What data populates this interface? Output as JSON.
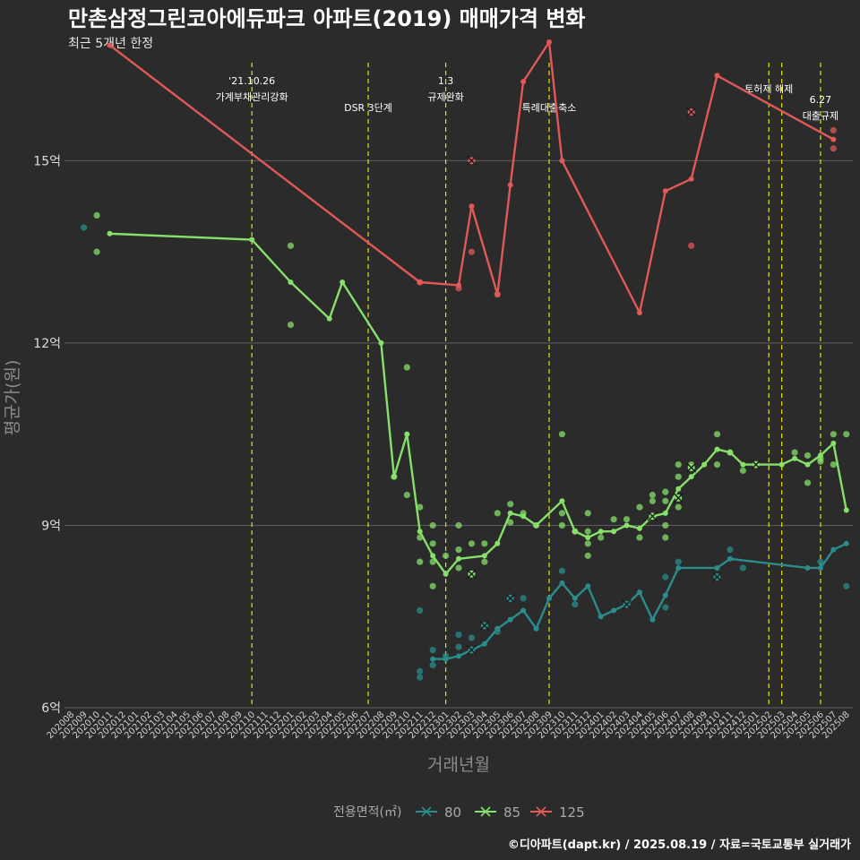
{
  "title": "만촌삼정그린코아에듀파크 아파트(2019) 매매가격 변화",
  "subtitle": "최근 5개년 한정",
  "caption": "©디아파트(dapt.kr) / 2025.08.19 / 자료=국토교통부 실거래가",
  "colors": {
    "background": "#2b2b2b",
    "gridline": "#5e5e5e",
    "event_line": "#e5e500",
    "series_80": "#2a8c8c",
    "series_85": "#86e06a",
    "series_125": "#e05858"
  },
  "chart_data": {
    "type": "line",
    "xlabel": "거래년월",
    "ylabel": "평균가(원)",
    "ylim": [
      6,
      16.7
    ],
    "yticks": [
      6,
      9,
      12,
      15
    ],
    "ytick_labels": [
      "6억",
      "9억",
      "12억",
      "15억"
    ],
    "grid": true,
    "x_categories": [
      "202008",
      "202009",
      "202010",
      "202011",
      "202012",
      "202101",
      "202102",
      "202103",
      "202104",
      "202105",
      "202106",
      "202107",
      "202108",
      "202109",
      "202110",
      "202111",
      "202112",
      "202201",
      "202202",
      "202203",
      "202204",
      "202205",
      "202206",
      "202207",
      "202208",
      "202209",
      "202210",
      "202211",
      "202212",
      "202301",
      "202302",
      "202303",
      "202304",
      "202305",
      "202306",
      "202307",
      "202308",
      "202309",
      "202310",
      "202311",
      "202312",
      "202401",
      "202402",
      "202403",
      "202404",
      "202405",
      "202406",
      "202407",
      "202408",
      "202409",
      "202410",
      "202411",
      "202412",
      "202501",
      "202502",
      "202503",
      "202504",
      "202505",
      "202506",
      "202507",
      "202508"
    ],
    "legend": {
      "title": "전용면적(㎡)",
      "position": "bottom",
      "entries": [
        "80",
        "85",
        "125"
      ]
    },
    "events": [
      {
        "x": "202110",
        "lines": [
          "'21.10.26",
          "가계부채관리강화"
        ]
      },
      {
        "x": "202207",
        "lines": [
          "DSR 3단계"
        ]
      },
      {
        "x": "202301",
        "lines": [
          "1.3",
          "규제완화"
        ]
      },
      {
        "x": "202309",
        "lines": [
          "특례대출축소"
        ]
      },
      {
        "x": "202502",
        "lines": [
          "토허제 해제"
        ]
      },
      {
        "x": "202503",
        "lines": []
      },
      {
        "x": "202506",
        "lines": [
          "6.27",
          "대출규제"
        ]
      }
    ],
    "series": [
      {
        "name": "80",
        "line": [
          [
            "202212",
            6.8
          ],
          [
            "202301",
            6.8
          ],
          [
            "202302",
            6.85
          ],
          [
            "202303",
            6.95
          ],
          [
            "202304",
            7.05
          ],
          [
            "202305",
            7.3
          ],
          [
            "202306",
            7.45
          ],
          [
            "202307",
            7.6
          ],
          [
            "202308",
            7.3
          ],
          [
            "202309",
            7.8
          ],
          [
            "202310",
            8.05
          ],
          [
            "202311",
            7.8
          ],
          [
            "202312",
            8.0
          ],
          [
            "202401",
            7.5
          ],
          [
            "202402",
            7.6
          ],
          [
            "202403",
            7.7
          ],
          [
            "202404",
            7.9
          ],
          [
            "202405",
            7.45
          ],
          [
            "202406",
            7.85
          ],
          [
            "202407",
            8.3
          ],
          [
            "202410",
            8.3
          ],
          [
            "202411",
            8.45
          ],
          [
            "202505",
            8.3
          ],
          [
            "202506",
            8.3
          ],
          [
            "202507",
            8.6
          ],
          [
            "202508",
            8.7
          ]
        ],
        "points": [
          [
            "202009",
            13.9
          ],
          [
            "202211",
            7.6
          ],
          [
            "202211",
            6.5
          ],
          [
            "202211",
            6.6
          ],
          [
            "202212",
            6.95
          ],
          [
            "202212",
            6.7
          ],
          [
            "202301",
            6.85
          ],
          [
            "202302",
            7.2
          ],
          [
            "202302",
            7.0
          ],
          [
            "202303",
            7.15
          ],
          [
            "202305",
            7.25
          ],
          [
            "202307",
            7.8
          ],
          [
            "202310",
            8.25
          ],
          [
            "202311",
            7.7
          ],
          [
            "202406",
            8.15
          ],
          [
            "202406",
            7.65
          ],
          [
            "202407",
            8.4
          ],
          [
            "202411",
            8.6
          ],
          [
            "202412",
            8.3
          ],
          [
            "202506",
            8.4
          ],
          [
            "202508",
            8.0
          ]
        ],
        "cancelled": [
          [
            "202303",
            6.95
          ],
          [
            "202304",
            7.35
          ],
          [
            "202306",
            7.8
          ],
          [
            "202403",
            7.7
          ],
          [
            "202410",
            8.15
          ]
        ]
      },
      {
        "name": "85",
        "line": [
          [
            "202011",
            13.8
          ],
          [
            "202110",
            13.7
          ],
          [
            "202201",
            13.0
          ],
          [
            "202204",
            12.4
          ],
          [
            "202205",
            13.0
          ],
          [
            "202208",
            12.0
          ],
          [
            "202209",
            9.8
          ],
          [
            "202210",
            10.5
          ],
          [
            "202211",
            8.9
          ],
          [
            "202212",
            8.5
          ],
          [
            "202301",
            8.2
          ],
          [
            "202302",
            8.45
          ],
          [
            "202304",
            8.5
          ],
          [
            "202305",
            8.7
          ],
          [
            "202306",
            9.2
          ],
          [
            "202307",
            9.15
          ],
          [
            "202308",
            9.0
          ],
          [
            "202310",
            9.4
          ],
          [
            "202311",
            8.9
          ],
          [
            "202312",
            8.8
          ],
          [
            "202401",
            8.9
          ],
          [
            "202402",
            8.9
          ],
          [
            "202403",
            9.0
          ],
          [
            "202404",
            8.95
          ],
          [
            "202405",
            9.15
          ],
          [
            "202406",
            9.2
          ],
          [
            "202407",
            9.6
          ],
          [
            "202408",
            9.8
          ],
          [
            "202409",
            10.0
          ],
          [
            "202410",
            10.25
          ],
          [
            "202411",
            10.2
          ],
          [
            "202412",
            10.0
          ],
          [
            "202501",
            10.0
          ],
          [
            "202503",
            10.0
          ],
          [
            "202504",
            10.1
          ],
          [
            "202505",
            10.0
          ],
          [
            "202506",
            10.15
          ],
          [
            "202507",
            10.35
          ],
          [
            "202508",
            9.25
          ]
        ],
        "points": [
          [
            "202010",
            14.1
          ],
          [
            "202010",
            13.5
          ],
          [
            "202201",
            13.6
          ],
          [
            "202201",
            12.3
          ],
          [
            "202209",
            9.8
          ],
          [
            "202210",
            11.6
          ],
          [
            "202210",
            9.5
          ],
          [
            "202211",
            9.3
          ],
          [
            "202211",
            8.8
          ],
          [
            "202211",
            8.4
          ],
          [
            "202212",
            9.0
          ],
          [
            "202212",
            8.7
          ],
          [
            "202212",
            8.4
          ],
          [
            "202212",
            8.0
          ],
          [
            "202301",
            8.5
          ],
          [
            "202302",
            9.0
          ],
          [
            "202302",
            8.6
          ],
          [
            "202302",
            8.3
          ],
          [
            "202303",
            8.7
          ],
          [
            "202304",
            8.7
          ],
          [
            "202304",
            8.4
          ],
          [
            "202305",
            9.2
          ],
          [
            "202306",
            9.35
          ],
          [
            "202306",
            9.05
          ],
          [
            "202307",
            9.2
          ],
          [
            "202308",
            9.0
          ],
          [
            "202310",
            10.5
          ],
          [
            "202310",
            9.2
          ],
          [
            "202310",
            9.0
          ],
          [
            "202311",
            8.9
          ],
          [
            "202312",
            9.2
          ],
          [
            "202312",
            8.9
          ],
          [
            "202312",
            8.7
          ],
          [
            "202312",
            8.5
          ],
          [
            "202401",
            8.8
          ],
          [
            "202402",
            9.1
          ],
          [
            "202403",
            9.1
          ],
          [
            "202404",
            9.3
          ],
          [
            "202404",
            8.8
          ],
          [
            "202405",
            9.5
          ],
          [
            "202405",
            9.4
          ],
          [
            "202406",
            9.55
          ],
          [
            "202406",
            9.4
          ],
          [
            "202406",
            9.0
          ],
          [
            "202406",
            8.8
          ],
          [
            "202407",
            10.0
          ],
          [
            "202407",
            9.8
          ],
          [
            "202407",
            9.3
          ],
          [
            "202408",
            10.0
          ],
          [
            "202410",
            10.5
          ],
          [
            "202410",
            10.0
          ],
          [
            "202411",
            10.2
          ],
          [
            "202412",
            9.9
          ],
          [
            "202504",
            10.2
          ],
          [
            "202505",
            10.15
          ],
          [
            "202505",
            9.7
          ],
          [
            "202506",
            10.1
          ],
          [
            "202506",
            10.05
          ],
          [
            "202507",
            10.5
          ],
          [
            "202507",
            10.0
          ],
          [
            "202508",
            10.5
          ]
        ],
        "cancelled": [
          [
            "202303",
            8.2
          ],
          [
            "202405",
            9.15
          ],
          [
            "202407",
            9.45
          ],
          [
            "202408",
            9.95
          ],
          [
            "202501",
            10.0
          ]
        ]
      },
      {
        "name": "125",
        "line": [
          [
            "202011",
            16.9
          ],
          [
            "202211",
            13.0
          ],
          [
            "202302",
            12.95
          ],
          [
            "202303",
            14.25
          ],
          [
            "202305",
            12.8
          ],
          [
            "202306",
            14.6
          ],
          [
            "202307",
            16.3
          ],
          [
            "202309",
            16.95
          ],
          [
            "202310",
            15.0
          ],
          [
            "202404",
            12.5
          ],
          [
            "202406",
            14.5
          ],
          [
            "202408",
            14.7
          ],
          [
            "202410",
            16.4
          ],
          [
            "202507",
            15.35
          ]
        ],
        "points": [
          [
            "202211",
            13.0
          ],
          [
            "202302",
            12.9
          ],
          [
            "202303",
            13.5
          ],
          [
            "202305",
            12.8
          ],
          [
            "202408",
            13.6
          ],
          [
            "202507",
            15.5
          ],
          [
            "202507",
            15.2
          ]
        ],
        "cancelled": [
          [
            "202303",
            15.0
          ],
          [
            "202408",
            15.8
          ]
        ]
      }
    ]
  }
}
